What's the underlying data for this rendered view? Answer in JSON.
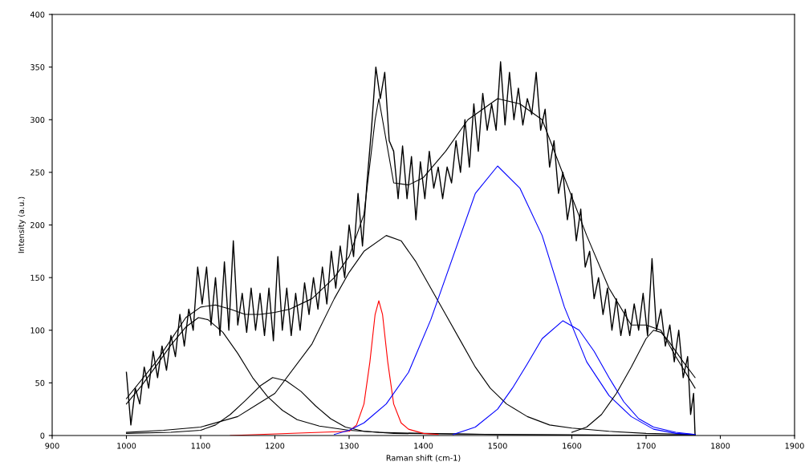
{
  "chart_data": {
    "type": "line",
    "xlabel": "Raman shift (cm-1)",
    "ylabel": "Intensity (a.u.)",
    "xlim": [
      900,
      1900
    ],
    "xticks": [
      900,
      1000,
      1100,
      1200,
      1300,
      1400,
      1500,
      1600,
      1700,
      1800,
      1900
    ],
    "ylim": [
      0,
      400
    ],
    "yticks": [
      0,
      50,
      100,
      150,
      200,
      250,
      300,
      350,
      400
    ],
    "grid": false,
    "marker": "none",
    "line_style": "solid",
    "series": [
      {
        "color": "#000000",
        "x": [
          1000,
          1006,
          1012,
          1018,
          1024,
          1030,
          1036,
          1042,
          1048,
          1054,
          1060,
          1066,
          1072,
          1078,
          1084,
          1090,
          1096,
          1102,
          1108,
          1114,
          1120,
          1126,
          1132,
          1138,
          1144,
          1150,
          1156,
          1162,
          1168,
          1174,
          1180,
          1186,
          1192,
          1198,
          1204,
          1210,
          1216,
          1222,
          1228,
          1234,
          1240,
          1246,
          1252,
          1258,
          1264,
          1270,
          1276,
          1282,
          1288,
          1294,
          1300,
          1306,
          1312,
          1318,
          1324,
          1330,
          1336,
          1342,
          1348,
          1354,
          1360,
          1366,
          1372,
          1378,
          1384,
          1390,
          1396,
          1402,
          1408,
          1414,
          1420,
          1426,
          1432,
          1438,
          1444,
          1450,
          1456,
          1462,
          1468,
          1474,
          1480,
          1486,
          1492,
          1498,
          1504,
          1510,
          1516,
          1522,
          1528,
          1534,
          1540,
          1546,
          1552,
          1558,
          1564,
          1570,
          1576,
          1582,
          1588,
          1594,
          1600,
          1606,
          1612,
          1618,
          1624,
          1630,
          1636,
          1642,
          1648,
          1654,
          1660,
          1666,
          1672,
          1678,
          1684,
          1690,
          1696,
          1702,
          1708,
          1714,
          1720,
          1726,
          1732,
          1738,
          1744,
          1750,
          1756,
          1760,
          1764,
          1766
        ],
        "values": [
          60,
          10,
          45,
          30,
          65,
          45,
          80,
          55,
          85,
          62,
          95,
          75,
          115,
          85,
          120,
          100,
          160,
          125,
          160,
          105,
          150,
          95,
          165,
          100,
          185,
          105,
          135,
          98,
          140,
          100,
          135,
          95,
          140,
          90,
          170,
          100,
          140,
          95,
          135,
          100,
          145,
          115,
          150,
          120,
          160,
          125,
          175,
          140,
          180,
          150,
          200,
          170,
          230,
          180,
          240,
          290,
          350,
          320,
          345,
          280,
          270,
          225,
          275,
          225,
          265,
          205,
          260,
          225,
          270,
          235,
          255,
          225,
          255,
          240,
          280,
          250,
          300,
          255,
          315,
          270,
          325,
          290,
          315,
          290,
          355,
          295,
          345,
          300,
          330,
          295,
          320,
          305,
          345,
          290,
          310,
          255,
          280,
          230,
          250,
          205,
          230,
          185,
          215,
          160,
          175,
          130,
          150,
          115,
          140,
          100,
          130,
          95,
          120,
          95,
          125,
          100,
          135,
          95,
          168,
          100,
          120,
          85,
          105,
          70,
          100,
          55,
          75,
          20,
          40,
          0
        ]
      },
      {
        "color": "#000000",
        "x": [
          1000,
          1040,
          1080,
          1100,
          1120,
          1140,
          1160,
          1180,
          1200,
          1220,
          1250,
          1280,
          1300,
          1320,
          1335,
          1340,
          1345,
          1360,
          1380,
          1400,
          1430,
          1460,
          1500,
          1530,
          1560,
          1590,
          1620,
          1650,
          1680,
          1700,
          1720,
          1740,
          1766
        ],
        "values": [
          35,
          70,
          112,
          122,
          124,
          120,
          115,
          115,
          117,
          120,
          130,
          150,
          170,
          210,
          300,
          320,
          300,
          240,
          238,
          245,
          270,
          300,
          320,
          315,
          300,
          245,
          190,
          140,
          105,
          105,
          100,
          75,
          45
        ]
      },
      {
        "color": "#000000",
        "x": [
          1000,
          1020,
          1040,
          1060,
          1080,
          1097,
          1110,
          1130,
          1150,
          1170,
          1190,
          1210,
          1230,
          1260,
          1300,
          1340,
          1400,
          1500,
          1766
        ],
        "values": [
          30,
          47,
          66,
          86,
          103,
          112,
          110,
          98,
          78,
          55,
          37,
          24,
          15,
          9,
          5,
          3,
          2,
          1,
          0
        ]
      },
      {
        "color": "#000000",
        "x": [
          1000,
          1060,
          1080,
          1100,
          1120,
          1140,
          1160,
          1180,
          1197,
          1215,
          1235,
          1255,
          1275,
          1295,
          1320,
          1360,
          1500,
          1766
        ],
        "values": [
          2,
          3,
          4,
          5,
          10,
          20,
          33,
          47,
          55,
          52,
          42,
          28,
          16,
          8,
          4,
          2,
          1,
          0
        ]
      },
      {
        "color": "#000000",
        "x": [
          1000,
          1050,
          1100,
          1150,
          1200,
          1250,
          1280,
          1300,
          1320,
          1350,
          1370,
          1390,
          1410,
          1430,
          1450,
          1470,
          1490,
          1512,
          1540,
          1570,
          1600,
          1650,
          1700,
          1766
        ],
        "values": [
          3,
          5,
          8,
          18,
          40,
          87,
          130,
          155,
          175,
          190,
          185,
          165,
          140,
          115,
          90,
          65,
          45,
          30,
          18,
          10,
          7,
          4,
          2,
          1
        ]
      },
      {
        "color": "#ff0000",
        "x": [
          1140,
          1300,
          1310,
          1320,
          1328,
          1335,
          1340,
          1345,
          1352,
          1360,
          1370,
          1380,
          1400,
          1420
        ],
        "values": [
          0,
          4,
          10,
          30,
          70,
          115,
          128,
          115,
          70,
          30,
          12,
          6,
          2,
          1
        ]
      },
      {
        "color": "#0000ff",
        "x": [
          1280,
          1300,
          1320,
          1350,
          1380,
          1410,
          1440,
          1470,
          1500,
          1530,
          1560,
          1590,
          1620,
          1650,
          1680,
          1710,
          1740,
          1766
        ],
        "values": [
          1,
          5,
          12,
          30,
          60,
          110,
          170,
          230,
          256,
          235,
          190,
          122,
          70,
          38,
          18,
          6,
          2,
          1
        ]
      },
      {
        "color": "#0000ff",
        "x": [
          1440,
          1470,
          1500,
          1520,
          1540,
          1560,
          1588,
          1610,
          1630,
          1650,
          1670,
          1690,
          1710,
          1740,
          1766
        ],
        "values": [
          1,
          8,
          25,
          45,
          68,
          92,
          109,
          100,
          80,
          55,
          32,
          16,
          8,
          3,
          1
        ]
      },
      {
        "color": "#000000",
        "x": [
          1600,
          1620,
          1640,
          1660,
          1680,
          1700,
          1710,
          1720,
          1730,
          1750,
          1766
        ],
        "values": [
          3,
          8,
          20,
          40,
          65,
          92,
          100,
          98,
          90,
          70,
          55
        ]
      }
    ]
  }
}
